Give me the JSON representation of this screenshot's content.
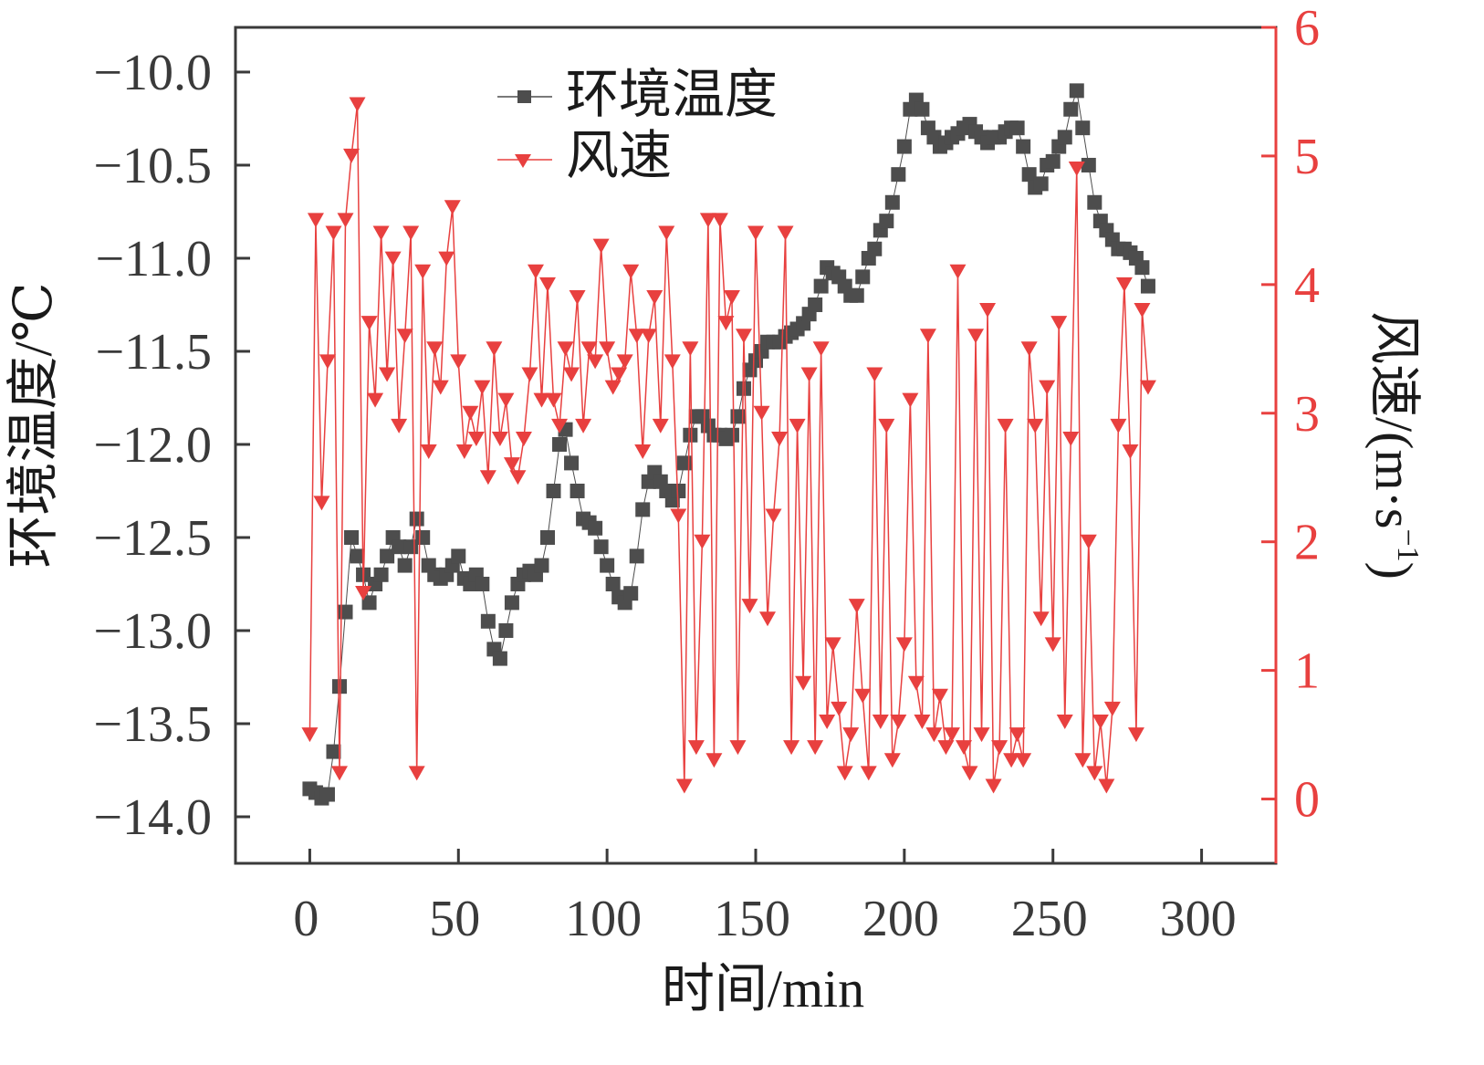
{
  "chart_data": {
    "type": "line",
    "title": "",
    "xlabel": "时间/min",
    "ylabel_left": "环境温度/℃",
    "ylabel_right_main": "风速/(m",
    "ylabel_right_dot": "·",
    "ylabel_right_unit": "s",
    "ylabel_right_exp": "−1",
    "ylabel_right_close": ")",
    "xlim": [
      -25,
      325
    ],
    "ylim_left": [
      -14.25,
      -9.76
    ],
    "ylim_right": [
      -0.5,
      6.0
    ],
    "xticks": [
      0,
      50,
      100,
      150,
      200,
      250,
      300
    ],
    "xtick_labels": [
      "0",
      "50",
      "100",
      "150",
      "200",
      "250",
      "300"
    ],
    "yticks_left": [
      -10.0,
      -10.5,
      -11.0,
      -11.5,
      -12.0,
      -12.5,
      -13.0,
      -13.5,
      -14.0
    ],
    "ytick_labels_left": [
      "−10.0",
      "−10.5",
      "−11.0",
      "−11.5",
      "−12.0",
      "−12.5",
      "−13.0",
      "−13.5",
      "−14.0"
    ],
    "yticks_right": [
      0,
      1,
      2,
      3,
      4,
      5,
      6
    ],
    "ytick_labels_right": [
      "0",
      "1",
      "2",
      "3",
      "4",
      "5",
      "6"
    ],
    "grid": false,
    "legend_position": "top-center",
    "colors": {
      "temperature": "#4d4d4d",
      "wind": "#e8403f",
      "right_axis": "#e8403f"
    },
    "x_step": 2,
    "series": [
      {
        "name": "环境温度",
        "axis": "left",
        "marker": "square",
        "x_start": 0,
        "values": [
          -13.85,
          -13.87,
          -13.9,
          -13.88,
          -13.65,
          -13.3,
          -12.9,
          -12.5,
          -12.6,
          -12.7,
          -12.85,
          -12.75,
          -12.7,
          -12.6,
          -12.5,
          -12.55,
          -12.65,
          -12.55,
          -12.4,
          -12.5,
          -12.65,
          -12.7,
          -12.72,
          -12.7,
          -12.65,
          -12.6,
          -12.72,
          -12.75,
          -12.7,
          -12.75,
          -12.95,
          -13.1,
          -13.15,
          -13.0,
          -12.85,
          -12.75,
          -12.7,
          -12.68,
          -12.7,
          -12.65,
          -12.5,
          -12.25,
          -12.0,
          -11.92,
          -12.1,
          -12.25,
          -12.4,
          -12.42,
          -12.45,
          -12.55,
          -12.65,
          -12.75,
          -12.82,
          -12.85,
          -12.8,
          -12.6,
          -12.35,
          -12.2,
          -12.15,
          -12.2,
          -12.25,
          -12.3,
          -12.25,
          -12.1,
          -11.95,
          -11.85,
          -11.85,
          -11.9,
          -11.95,
          -11.95,
          -11.97,
          -11.95,
          -11.85,
          -11.7,
          -11.6,
          -11.55,
          -11.5,
          -11.45,
          -11.45,
          -11.45,
          -11.42,
          -11.4,
          -11.38,
          -11.35,
          -11.3,
          -11.25,
          -11.15,
          -11.05,
          -11.08,
          -11.1,
          -11.15,
          -11.2,
          -11.2,
          -11.1,
          -11.0,
          -10.95,
          -10.85,
          -10.8,
          -10.7,
          -10.55,
          -10.4,
          -10.2,
          -10.15,
          -10.2,
          -10.3,
          -10.35,
          -10.4,
          -10.38,
          -10.35,
          -10.33,
          -10.3,
          -10.28,
          -10.32,
          -10.35,
          -10.38,
          -10.35,
          -10.35,
          -10.32,
          -10.3,
          -10.3,
          -10.4,
          -10.55,
          -10.62,
          -10.6,
          -10.5,
          -10.48,
          -10.4,
          -10.35,
          -10.2,
          -10.1,
          -10.3,
          -10.5,
          -10.7,
          -10.8,
          -10.85,
          -10.9,
          -10.95,
          -10.95,
          -10.97,
          -11.0,
          -11.05,
          -11.15
        ]
      },
      {
        "name": "风速",
        "axis": "right",
        "marker": "triangle-down",
        "x_start": 0,
        "values": [
          0.5,
          4.5,
          2.3,
          3.4,
          4.4,
          0.2,
          4.5,
          5.0,
          5.4,
          1.6,
          3.7,
          3.1,
          4.4,
          3.3,
          4.2,
          2.9,
          3.6,
          4.4,
          0.2,
          4.1,
          2.7,
          3.5,
          3.2,
          4.2,
          4.6,
          3.4,
          2.7,
          3.0,
          2.8,
          3.2,
          2.5,
          3.5,
          2.8,
          3.1,
          2.6,
          2.5,
          2.8,
          3.3,
          4.1,
          3.1,
          4.0,
          3.1,
          2.9,
          3.5,
          3.3,
          3.9,
          2.9,
          3.5,
          3.4,
          4.3,
          3.5,
          3.2,
          3.3,
          3.4,
          4.1,
          3.6,
          2.7,
          3.6,
          3.9,
          2.9,
          4.4,
          3.4,
          2.2,
          0.1,
          3.5,
          0.4,
          2.0,
          4.5,
          0.3,
          4.5,
          3.7,
          3.9,
          0.4,
          3.6,
          1.5,
          4.4,
          3.0,
          1.4,
          2.2,
          2.8,
          4.4,
          0.4,
          2.9,
          0.9,
          3.3,
          0.4,
          3.5,
          0.6,
          1.2,
          0.7,
          0.2,
          0.5,
          1.5,
          0.8,
          0.2,
          3.3,
          0.6,
          2.9,
          0.3,
          0.6,
          1.2,
          3.1,
          0.9,
          0.6,
          3.6,
          0.5,
          0.8,
          0.4,
          0.5,
          4.1,
          0.4,
          0.2,
          3.6,
          0.5,
          3.8,
          0.1,
          0.4,
          2.9,
          0.3,
          0.5,
          0.3,
          3.5,
          2.9,
          1.4,
          3.2,
          1.2,
          3.7,
          0.6,
          2.8,
          4.9,
          0.3,
          2.0,
          0.2,
          0.6,
          0.1,
          0.7,
          2.9,
          4.0,
          2.7,
          0.5,
          3.8,
          3.2
        ]
      }
    ]
  }
}
